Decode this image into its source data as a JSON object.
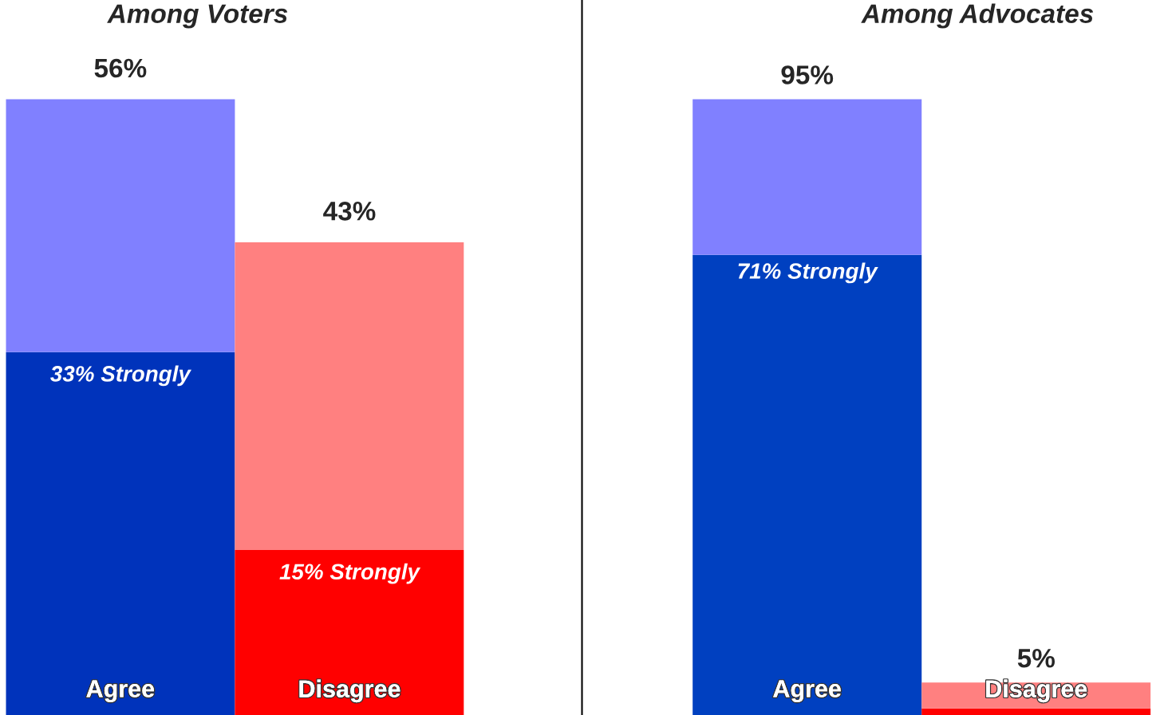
{
  "chart_data": [
    {
      "type": "bar",
      "title": "Among Voters",
      "categories": [
        "Agree",
        "Disagree"
      ],
      "stacked": true,
      "series": [
        {
          "colors": [
            "#0033bb",
            "#ff0000"
          ],
          "values": [
            33,
            15
          ],
          "value_labels": [
            "33% Strongly",
            "15% Strongly"
          ]
        },
        {
          "colors": [
            "#8080ff",
            "#ff8080"
          ],
          "values": [
            23,
            28
          ]
        }
      ],
      "totals": [
        "56%",
        "43%"
      ]
    },
    {
      "type": "bar",
      "title": "Among Advocates",
      "categories": [
        "Agree",
        "Disagree"
      ],
      "stacked": true,
      "series": [
        {
          "colors": [
            "#0040c0",
            "#ff0000"
          ],
          "values": [
            71,
            1
          ],
          "value_labels": [
            "71% Strongly",
            null
          ]
        },
        {
          "colors": [
            "#8080ff",
            "#ff8080"
          ],
          "values": [
            24,
            4
          ]
        }
      ],
      "totals": [
        "95%",
        "5%"
      ]
    }
  ]
}
